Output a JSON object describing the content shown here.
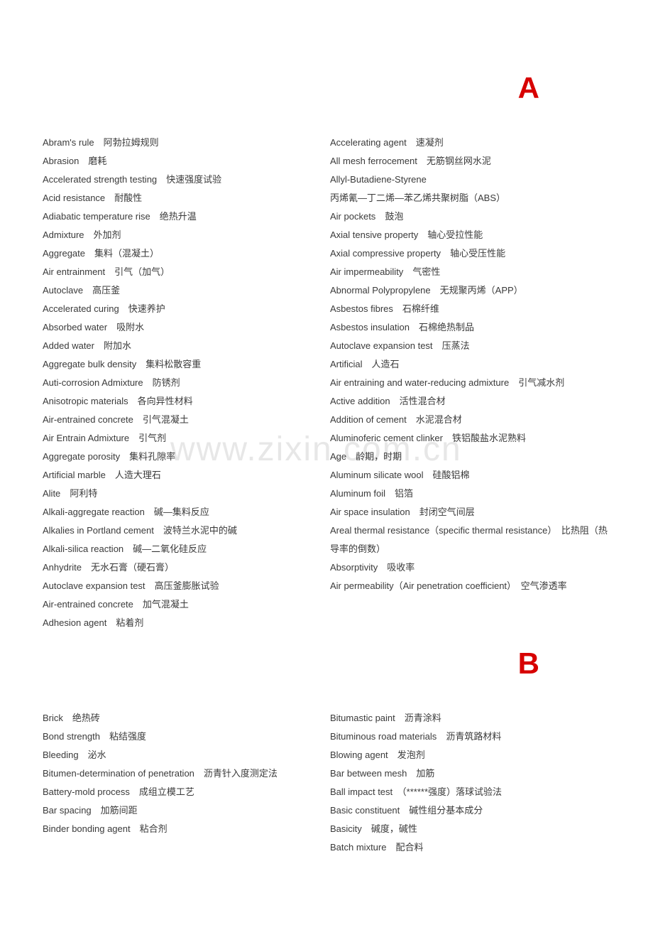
{
  "watermark": "www.zixin.com.cn",
  "sections": [
    {
      "letter": "A",
      "columns": [
        [
          {
            "en": "Abram's rule",
            "zh": "阿勃拉姆规则"
          },
          {
            "en": "Abrasion",
            "zh": "磨耗"
          },
          {
            "en": "Accelerated strength testing",
            "zh": "快速强度试验"
          },
          {
            "en": "Acid resistance",
            "zh": "耐酸性"
          },
          {
            "en": "Adiabatic temperature rise",
            "zh": "绝热升温"
          },
          {
            "en": "Admixture",
            "zh": "外加剂"
          },
          {
            "en": "Aggregate",
            "zh": "集料（混凝土）"
          },
          {
            "en": "Air entrainment",
            "zh": "引气（加气）"
          },
          {
            "en": "Autoclave",
            "zh": "高压釜"
          },
          {
            "en": "Accelerated curing",
            "zh": "快速养护"
          },
          {
            "en": "Absorbed water",
            "zh": "吸附水"
          },
          {
            "en": "Added water",
            "zh": "附加水"
          },
          {
            "en": "Aggregate bulk density",
            "zh": "集料松散容重"
          },
          {
            "en": "Auti-corrosion Admixture",
            "zh": "防锈剂"
          },
          {
            "en": "Anisotropic materials",
            "zh": "各向异性材料"
          },
          {
            "en": "Air-entrained concrete",
            "zh": "引气混凝土"
          },
          {
            "en": "Air Entrain Admixture",
            "zh": "引气剂"
          },
          {
            "en": "Aggregate porosity",
            "zh": "集料孔隙率"
          },
          {
            "en": "Artificial marble",
            "zh": "人造大理石"
          },
          {
            "en": "Alite",
            "zh": "阿利特"
          },
          {
            "en": "Alkali-aggregate reaction",
            "zh": "碱—集料反应"
          },
          {
            "en": "Alkalies in Portland cement",
            "zh": "波特兰水泥中的碱"
          },
          {
            "en": "Alkali-silica reaction",
            "zh": "碱—二氧化硅反应"
          },
          {
            "en": "Anhydrite",
            "zh": "无水石膏（硬石膏）"
          },
          {
            "en": "Autoclave expansion test",
            "zh": "高压釜膨胀试验"
          },
          {
            "en": "Air-entrained concrete",
            "zh": "加气混凝土"
          },
          {
            "en": "Adhesion agent",
            "zh": "粘着剂"
          }
        ],
        [
          {
            "en": "Accelerating agent",
            "zh": "速凝剂"
          },
          {
            "en": "All mesh ferrocement",
            "zh": "无筋钢丝网水泥"
          },
          {
            "en": "Allyl-Butadiene-Styrene",
            "zh": "丙烯氰—丁二烯—苯乙烯共聚树脂（ABS）"
          },
          {
            "en": "Air pockets",
            "zh": "鼓泡"
          },
          {
            "en": "Axial tensive property",
            "zh": "轴心受拉性能"
          },
          {
            "en": "Axial compressive property",
            "zh": "轴心受压性能"
          },
          {
            "en": "Air impermeability",
            "zh": "气密性"
          },
          {
            "en": "Abnormal Polypropylene",
            "zh": "无规聚丙烯（APP）"
          },
          {
            "en": "Asbestos fibres",
            "zh": "石棉纤维"
          },
          {
            "en": "Asbestos insulation",
            "zh": "石棉绝热制品"
          },
          {
            "en": "Autoclave expansion test",
            "zh": "压蒸法"
          },
          {
            "en": "Artificial",
            "zh": "人造石"
          },
          {
            "en": "Air entraining and water-reducing admixture",
            "zh": "引气减水剂"
          },
          {
            "en": "Active addition",
            "zh": "活性混合材"
          },
          {
            "en": "Addition of cement",
            "zh": "水泥混合材"
          },
          {
            "en": "Aluminoferic cement clinker",
            "zh": "铁铝酸盐水泥熟料"
          },
          {
            "en": "Age",
            "zh": "龄期，时期"
          },
          {
            "en": "Aluminum silicate wool",
            "zh": "硅酸铝棉"
          },
          {
            "en": "Aluminum foil",
            "zh": "铝箔"
          },
          {
            "en": "Air space insulation",
            "zh": "封闭空气间层"
          },
          {
            "en": "Areal thermal resistance（specific thermal resistance）",
            "zh": "比热阻（热导率的倒数）"
          },
          {
            "en": "Absorptivity",
            "zh": "吸收率"
          },
          {
            "en": "Air permeability（Air penetration coefficient）",
            "zh": "空气渗透率"
          }
        ]
      ]
    },
    {
      "letter": "B",
      "columns": [
        [
          {
            "en": "Brick",
            "zh": "绝热砖"
          },
          {
            "en": "Bond strength",
            "zh": "粘结强度"
          },
          {
            "en": "Bleeding",
            "zh": "泌水"
          },
          {
            "en": "Bitumen-determination of penetration",
            "zh": "沥青针入度测定法"
          },
          {
            "en": "Battery-mold process",
            "zh": "成组立模工艺"
          },
          {
            "en": "Bar spacing",
            "zh": "加筋间距"
          },
          {
            "en": "Binder bonding agent",
            "zh": "粘合剂"
          }
        ],
        [
          {
            "en": "Bitumastic paint",
            "zh": "沥青涂料"
          },
          {
            "en": "Bituminous road materials",
            "zh": "沥青筑路材料"
          },
          {
            "en": "Blowing agent",
            "zh": "发泡剂"
          },
          {
            "en": "Bar between mesh",
            "zh": "加筋"
          },
          {
            "en": "Ball impact test",
            "zh": "（******强度）落球试验法"
          },
          {
            "en": "Basic constituent",
            "zh": "碱性组分基本成分"
          },
          {
            "en": "Basicity",
            "zh": "碱度，碱性"
          },
          {
            "en": "Batch mixture",
            "zh": "配合料"
          }
        ]
      ]
    }
  ]
}
